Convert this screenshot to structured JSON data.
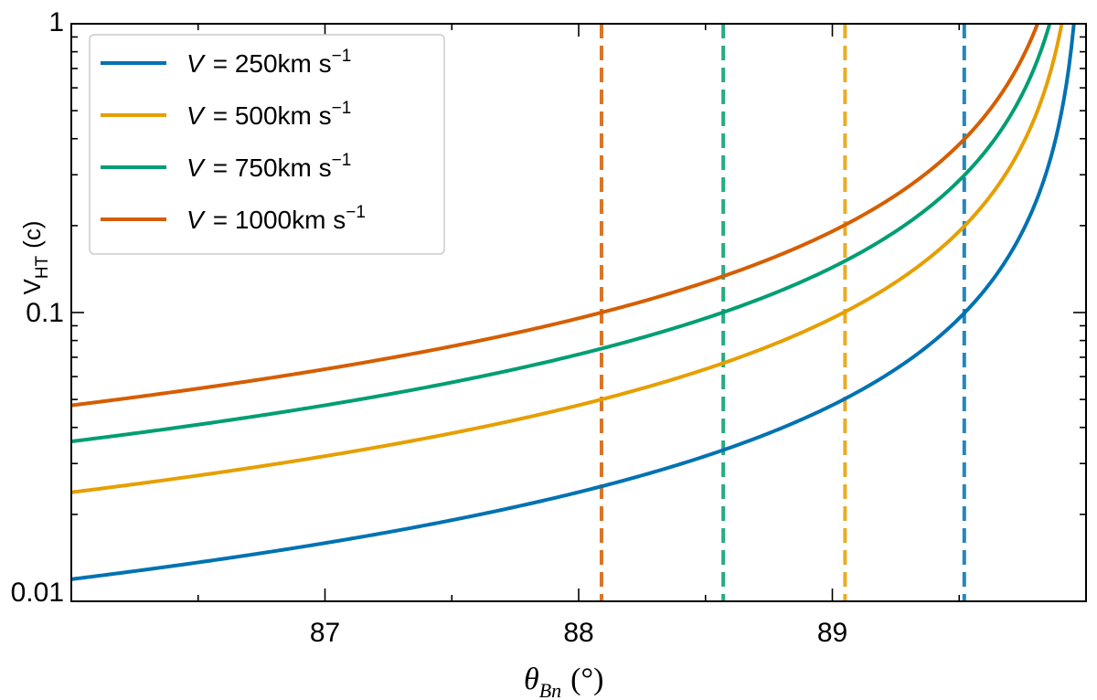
{
  "chart_data": {
    "type": "line",
    "title": "",
    "xlabel": "θ_Bn (°)",
    "xlabel_symbol": "θ",
    "xlabel_subscript": "Bn",
    "xlabel_unit": "(°)",
    "ylabel": "V_HT (c)",
    "ylabel_main": "V",
    "ylabel_sub": "HT",
    "ylabel_unit": "(c)",
    "yscale": "log",
    "xlim": [
      86.0,
      90.0
    ],
    "ylim": [
      0.01,
      1
    ],
    "xticks": [
      87,
      88,
      89
    ],
    "xtick_labels": [
      "87",
      "88",
      "89"
    ],
    "yticks": [
      0.01,
      0.1,
      1
    ],
    "ytick_labels": [
      "0.01",
      "0.1",
      "1"
    ],
    "model": "V_HT = V * tan(theta_Bn) / c",
    "legend_position": "top-left",
    "series": [
      {
        "name": "V = 250km s−1",
        "legend_prefix": "V",
        "legend_value": "= 250km s",
        "legend_exp": "−1",
        "speed_km_s": 250,
        "color": "#0072B2",
        "x": [
          86.0,
          87.0,
          88.0,
          88.5,
          89.0,
          89.5,
          89.8,
          89.95
        ],
        "y": [
          0.0119,
          0.0159,
          0.0238,
          0.0318,
          0.0477,
          0.0955,
          0.239,
          0.955
        ]
      },
      {
        "name": "V = 500km s−1",
        "legend_prefix": "V",
        "legend_value": "= 500km s",
        "legend_exp": "−1",
        "speed_km_s": 500,
        "color": "#E69F00",
        "x": [
          86.0,
          87.0,
          88.0,
          88.5,
          89.0,
          89.5,
          89.8,
          89.9
        ],
        "y": [
          0.0238,
          0.0318,
          0.0477,
          0.0636,
          0.0955,
          0.191,
          0.477,
          0.955
        ]
      },
      {
        "name": "V = 750km s−1",
        "legend_prefix": "V",
        "legend_value": "= 750km s",
        "legend_exp": "−1",
        "speed_km_s": 750,
        "color": "#009E73",
        "x": [
          86.0,
          87.0,
          88.0,
          88.5,
          89.0,
          89.5,
          89.8,
          89.86
        ],
        "y": [
          0.0357,
          0.0477,
          0.0716,
          0.0955,
          0.143,
          0.286,
          0.716,
          1.0
        ]
      },
      {
        "name": "V = 1000km s−1",
        "legend_prefix": "V",
        "legend_value": "= 1000km s",
        "legend_exp": "−1",
        "speed_km_s": 1000,
        "color": "#D55E00",
        "x": [
          86.0,
          87.0,
          88.0,
          88.5,
          89.0,
          89.5,
          89.8,
          89.81
        ],
        "y": [
          0.0477,
          0.0636,
          0.0955,
          0.127,
          0.191,
          0.382,
          0.955,
          1.0
        ]
      }
    ],
    "vlines": [
      {
        "x": 88.09,
        "color": "#D55E00"
      },
      {
        "x": 88.57,
        "color": "#009E73"
      },
      {
        "x": 89.05,
        "color": "#E69F00"
      },
      {
        "x": 89.52,
        "color": "#0072B2"
      }
    ]
  }
}
